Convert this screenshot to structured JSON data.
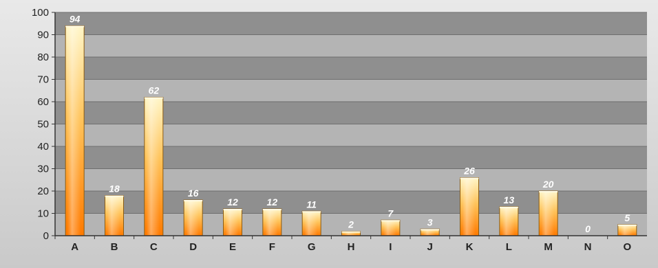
{
  "chart_data": {
    "type": "bar",
    "categories": [
      "A",
      "B",
      "C",
      "D",
      "E",
      "F",
      "G",
      "H",
      "I",
      "J",
      "K",
      "L",
      "M",
      "N",
      "O"
    ],
    "values": [
      94,
      18,
      62,
      16,
      12,
      12,
      11,
      2,
      7,
      3,
      26,
      13,
      20,
      0,
      5
    ],
    "data_labels": [
      "94",
      "18",
      "62",
      "16",
      "12",
      "12",
      "11",
      "2",
      "7",
      "3",
      "26",
      "13",
      "20",
      "0",
      "5"
    ],
    "ylim": [
      0,
      100
    ],
    "yticks": [
      "0",
      "10",
      "20",
      "30",
      "40",
      "50",
      "60",
      "70",
      "80",
      "90",
      "100"
    ],
    "grid": true,
    "legend": "none",
    "colors": {
      "bar_top": "#fff6c8",
      "bar_mid": "#ffc35a",
      "bar_bottom": "#ff7a00",
      "bar_edge": "#8a5a10",
      "band_dark": "#8f8f8f",
      "band_light": "#b4b4b4"
    }
  }
}
